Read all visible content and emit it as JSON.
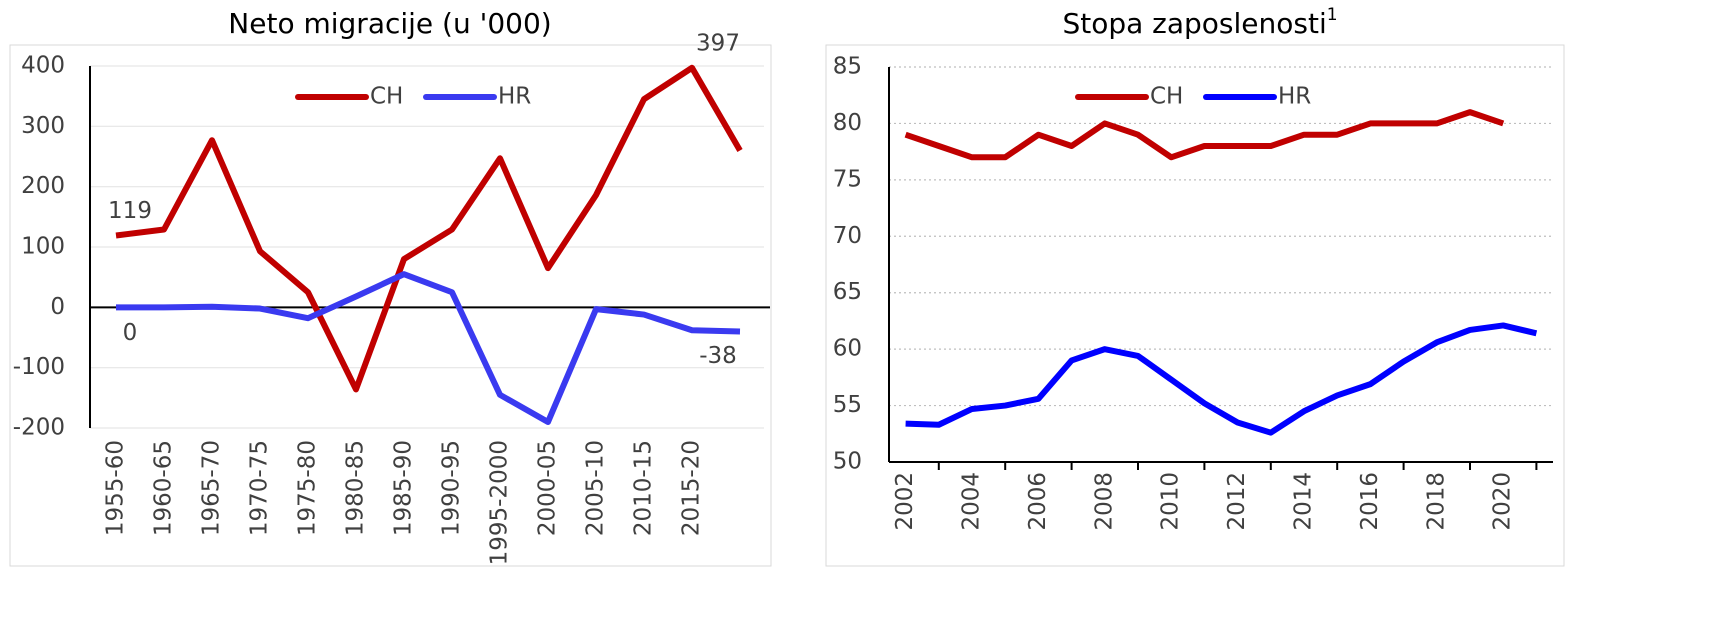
{
  "chart_data": [
    {
      "type": "line",
      "title": "Neto migracije (u '000)",
      "categories": [
        "1955-60",
        "1960-65",
        "1965-70",
        "1970-75",
        "1975-80",
        "1980-85",
        "1985-90",
        "1990-95",
        "1995-2000",
        "2000-05",
        "2005-10",
        "2010-15",
        "2015-20",
        null
      ],
      "series": [
        {
          "name": "CH",
          "color": "#c00000",
          "values": [
            119,
            129,
            277,
            93,
            25,
            -136,
            80,
            129,
            247,
            65,
            186,
            345,
            397,
            260
          ],
          "value_labels": [
            "119",
            null,
            null,
            null,
            null,
            null,
            null,
            null,
            null,
            null,
            null,
            null,
            "397",
            null
          ]
        },
        {
          "name": "HR",
          "color": "#3a3af0",
          "values": [
            0,
            0,
            1,
            -2,
            -18,
            18,
            55,
            25,
            -145,
            -190,
            -3,
            -12,
            -38,
            -40
          ],
          "value_labels": [
            "0",
            null,
            null,
            null,
            null,
            null,
            null,
            null,
            null,
            null,
            null,
            null,
            "-38",
            null
          ]
        }
      ],
      "ylim": [
        -200,
        400
      ],
      "yticks": [
        -200,
        -100,
        0,
        100,
        200,
        300,
        400
      ],
      "grid": true
    },
    {
      "type": "line",
      "title": "Stopa zaposlenosti",
      "title_note": "1",
      "x": [
        2002,
        2003,
        2004,
        2005,
        2006,
        2007,
        2008,
        2009,
        2010,
        2011,
        2012,
        2013,
        2014,
        2015,
        2016,
        2017,
        2018,
        2019,
        2020,
        2021
      ],
      "series": [
        {
          "name": "CH",
          "color": "#c00000",
          "values": [
            79,
            78,
            77,
            77,
            79,
            78,
            80,
            79,
            77,
            78,
            78,
            78,
            79,
            79,
            80,
            80,
            80,
            81,
            80,
            null
          ]
        },
        {
          "name": "HR",
          "color": "#0000ff",
          "values": [
            53.4,
            53.3,
            54.7,
            55,
            55.6,
            59,
            60,
            59.4,
            57.3,
            55.2,
            53.5,
            52.6,
            54.5,
            55.9,
            56.9,
            58.9,
            60.6,
            61.7,
            62.1,
            61.4
          ]
        }
      ],
      "xlim": [
        2001.5,
        2021.5
      ],
      "xticks": [
        2002,
        2004,
        2006,
        2008,
        2010,
        2012,
        2014,
        2016,
        2018,
        2020
      ],
      "ylim": [
        50,
        85
      ],
      "yticks": [
        50,
        55,
        60,
        65,
        70,
        75,
        80,
        85
      ],
      "grid": true,
      "grid_style": "dotted"
    }
  ]
}
